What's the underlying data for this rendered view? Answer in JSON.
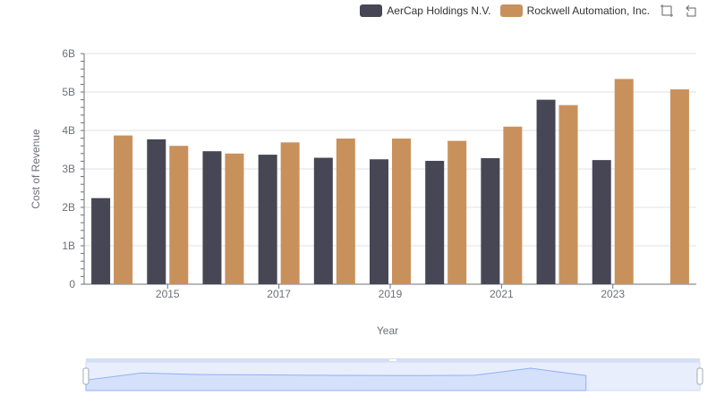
{
  "colors": {
    "aercap": "#464655",
    "rockwell": "#c8915c",
    "grid": "#e0e0e0",
    "axis": "#6e7079",
    "zoom_fill": "#d5e1fb",
    "zoom_line": "#8fb0f7"
  },
  "legend": {
    "items": [
      {
        "label": "AerCap Holdings N.V.",
        "color": "#464655"
      },
      {
        "label": "Rockwell Automation, Inc.",
        "color": "#c8915c"
      }
    ]
  },
  "toolbox": {
    "icons": [
      "zoom-icon",
      "zoom-reset-icon"
    ]
  },
  "chart_data": {
    "type": "bar",
    "xlabel": "Year",
    "ylabel": "Cost of Revenue",
    "categories": [
      "2014",
      "2015",
      "2016",
      "2017",
      "2018",
      "2019",
      "2020",
      "2021",
      "2022",
      "2023",
      "2024"
    ],
    "x_tick_labels": [
      "2015",
      "2017",
      "2019",
      "2021",
      "2023"
    ],
    "y_ticks": [
      "0",
      "1B",
      "2B",
      "3B",
      "4B",
      "5B",
      "6B"
    ],
    "ylim": [
      0,
      6000000000
    ],
    "grid": true,
    "legend_position": "top-right",
    "series": [
      {
        "name": "AerCap Holdings N.V.",
        "values": [
          2240000000,
          3770000000,
          3460000000,
          3370000000,
          3290000000,
          3250000000,
          3210000000,
          3280000000,
          4800000000,
          3230000000,
          null
        ]
      },
      {
        "name": "Rockwell Automation, Inc.",
        "values": [
          3870000000,
          3600000000,
          3400000000,
          3690000000,
          3790000000,
          3790000000,
          3730000000,
          4100000000,
          4660000000,
          5340000000,
          5070000000
        ]
      }
    ]
  }
}
